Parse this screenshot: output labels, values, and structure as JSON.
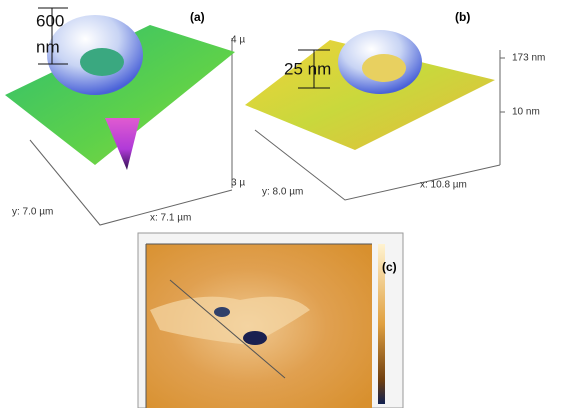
{
  "panel_a": {
    "label": "(a)",
    "scale_top": "600",
    "scale_bottom": "nm",
    "z_top": "4 µ",
    "z_bottom": "3 µ",
    "y_axis": "y: 7.0 µm",
    "x_axis": "x: 7.1 µm"
  },
  "panel_b": {
    "label": "(b)",
    "scale": "25 nm",
    "z_top": "173 nm",
    "z_bottom": "10 nm",
    "y_axis": "y: 8.0 µm",
    "x_axis": "x: 10.8 µm"
  },
  "panel_c": {
    "label": "(c)"
  }
}
